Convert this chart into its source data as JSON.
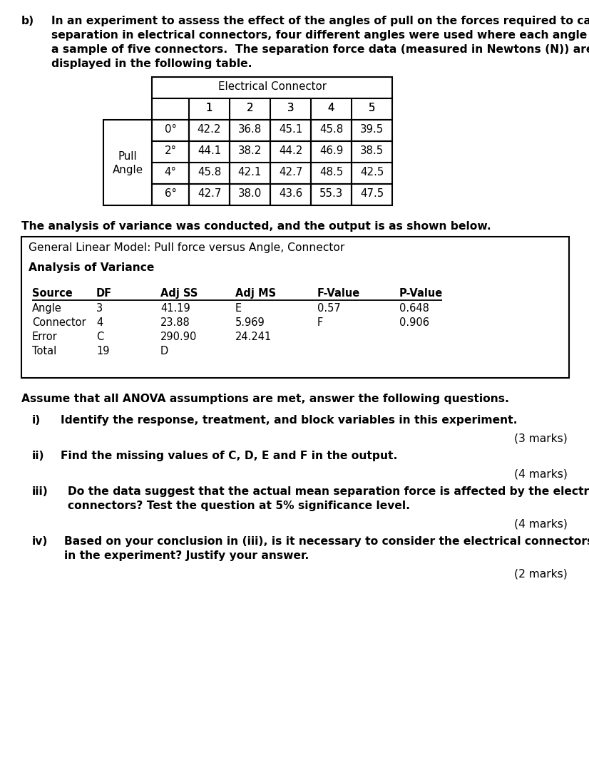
{
  "bg_color": "#ffffff",
  "part_label": "b)",
  "intro_lines": [
    "In an experiment to assess the effect of the angles of pull on the forces required to cause",
    "separation in electrical connectors, four different angles were used where each angle has",
    "a sample of five connectors.  The separation force data (measured in Newtons (N)) are",
    "displayed in the following table."
  ],
  "table1_header_top": "Electrical Connector",
  "table1_col_headers": [
    "1",
    "2",
    "3",
    "4",
    "5"
  ],
  "table1_row_label_top": "Pull",
  "table1_row_label_bottom": "Angle",
  "table1_row_headers": [
    "0°",
    "2°",
    "4°",
    "6°"
  ],
  "table1_data": [
    [
      "42.2",
      "36.8",
      "45.1",
      "45.8",
      "39.5"
    ],
    [
      "44.1",
      "38.2",
      "44.2",
      "46.9",
      "38.5"
    ],
    [
      "45.8",
      "42.1",
      "42.7",
      "48.5",
      "42.5"
    ],
    [
      "42.7",
      "38.0",
      "43.6",
      "55.3",
      "47.5"
    ]
  ],
  "anova_text": "The analysis of variance was conducted, and the output is as shown below.",
  "anova_box_title": "General Linear Model: Pull force versus Angle, Connector",
  "anova_subtitle": "Analysis of Variance",
  "anova_col_headers": [
    "Source",
    "DF",
    "Adj SS",
    "Adj MS",
    "F-Value",
    "P-Value"
  ],
  "anova_rows": [
    [
      "Angle",
      "3",
      "41.19",
      "E",
      "0.57",
      "0.648"
    ],
    [
      "Connector",
      "4",
      "23.88",
      "5.969",
      "F",
      "0.906"
    ],
    [
      "Error",
      "C",
      "290.90",
      "24.241",
      "",
      ""
    ],
    [
      "Total",
      "19",
      "D",
      "",
      "",
      ""
    ]
  ],
  "questions_intro": "Assume that all ANOVA assumptions are met, answer the following questions.",
  "questions": [
    {
      "label": "i)",
      "text": "Identify the response, treatment, and block variables in this experiment.",
      "marks": "(3 marks)",
      "indent": 55
    },
    {
      "label": "ii)",
      "text": "Find the missing values of C, D, E and F in the output.",
      "marks": "(4 marks)",
      "indent": 55
    },
    {
      "label": "iii)",
      "text_lines": [
        "Do the data suggest that the actual mean separation force is affected by the electrical",
        "connectors? Test the question at 5% significance level."
      ],
      "marks": "(4 marks)",
      "indent": 65
    },
    {
      "label": "iv)",
      "text_lines": [
        "Based on your conclusion in (iii), is it necessary to consider the electrical connectors",
        "in the experiment? Justify your answer."
      ],
      "marks": "(2 marks)",
      "indent": 60
    }
  ]
}
